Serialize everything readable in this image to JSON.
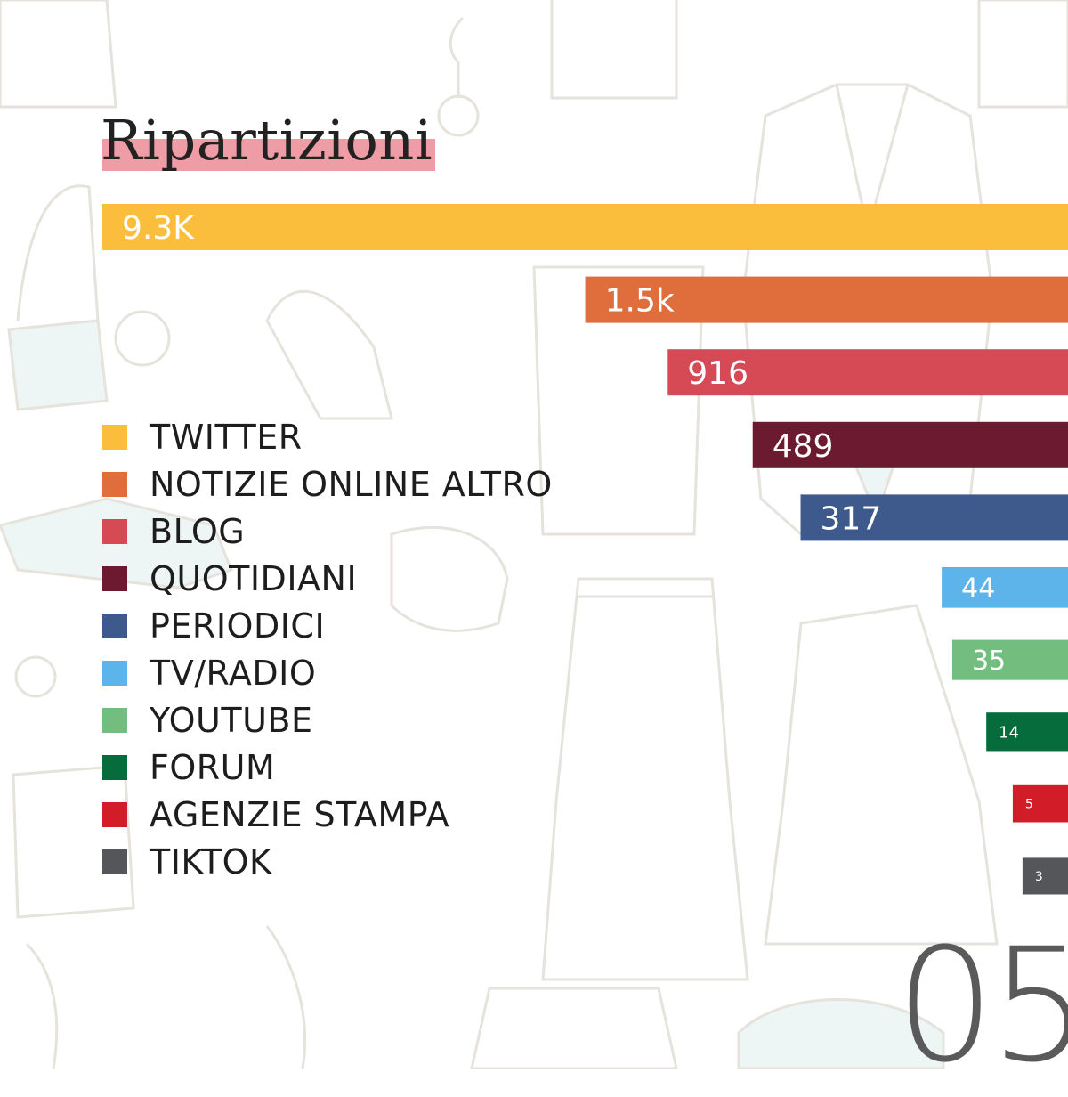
{
  "title": "Ripartizioni",
  "page_number": "05",
  "colors": {
    "title_highlight": "#ee9ca6",
    "bar_text": "#ffffff"
  },
  "chart_data": {
    "type": "bar",
    "orientation": "horizontal",
    "title": "Ripartizioni",
    "categories": [
      "TWITTER",
      "NOTIZIE ONLINE ALTRO",
      "BLOG",
      "QUOTIDIANI",
      "PERIODICI",
      "TV/RADIO",
      "YOUTUBE",
      "FORUM",
      "AGENZIE STAMPA",
      "TIKTOK"
    ],
    "values": [
      9300,
      1500,
      916,
      489,
      317,
      44,
      35,
      14,
      5,
      3
    ],
    "data_labels": [
      "9.3K",
      "1.5k",
      "916",
      "489",
      "317",
      "44",
      "35",
      "14",
      "5",
      "3"
    ],
    "colors": [
      "#fbbe3c",
      "#e06e3d",
      "#d64a56",
      "#6b1a2f",
      "#3e5a8d",
      "#5cb4ea",
      "#73bd7f",
      "#076c3c",
      "#d21d28",
      "#54565a"
    ],
    "bars_anchor": "right",
    "legend": "left",
    "grid": false
  }
}
